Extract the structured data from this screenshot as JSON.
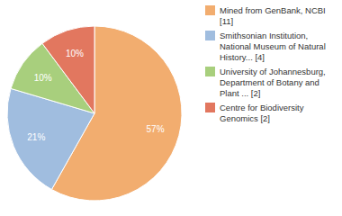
{
  "chart_data": {
    "type": "pie",
    "categories": [
      "Mined from GenBank, NCBI [11]",
      "Smithsonian Institution, National Museum of Natural History... [4]",
      "University of Johannesburg, Department of Botany and Plant ... [2]",
      "Centre for Biodiversity Genomics [2]"
    ],
    "values": [
      57,
      21,
      10,
      10
    ],
    "value_labels": [
      "57%",
      "21%",
      "10%",
      "10%"
    ],
    "colors": [
      "#f2ad6f",
      "#a0bddf",
      "#a8cf7d",
      "#e2775f"
    ],
    "data_labels": true,
    "legend": "top-right"
  }
}
